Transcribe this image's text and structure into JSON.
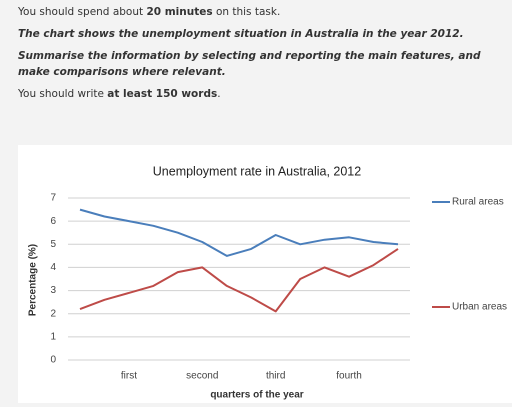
{
  "task": {
    "lines": [
      [
        "You should spend about ",
        "20 minutes",
        " on this task."
      ],
      [
        "The chart shows the unemployment situation in Australia in the year 2012."
      ],
      [
        "Summarise the information by selecting and reporting the main features, and make comparisons where relevant."
      ],
      [
        "You should write ",
        "at least 150 words",
        "."
      ]
    ]
  },
  "chart_data": {
    "type": "line",
    "title": "Unemployment rate in Australia, 2012",
    "x_label": "quarters of the year",
    "y_label": "Percentage (%)",
    "categories": [
      null,
      null,
      "first",
      null,
      null,
      "second",
      null,
      null,
      "third",
      null,
      null,
      "fourth",
      null,
      null
    ],
    "series": [
      {
        "name": "Rural areas",
        "color": "#4a7ebb",
        "values": [
          6.5,
          6.2,
          6.0,
          5.8,
          5.5,
          5.1,
          4.5,
          4.8,
          5.4,
          5.0,
          5.2,
          5.3,
          5.1,
          5.0
        ]
      },
      {
        "name": "Urban areas",
        "color": "#be4b48",
        "values": [
          2.2,
          2.6,
          2.9,
          3.2,
          3.8,
          4.0,
          3.2,
          2.7,
          2.1,
          3.5,
          4.0,
          3.6,
          4.1,
          4.8
        ]
      }
    ],
    "ylim": [
      0,
      7
    ],
    "yticks": [
      0,
      1,
      2,
      3,
      4,
      5,
      6,
      7
    ],
    "grid": true,
    "legend": "right"
  }
}
